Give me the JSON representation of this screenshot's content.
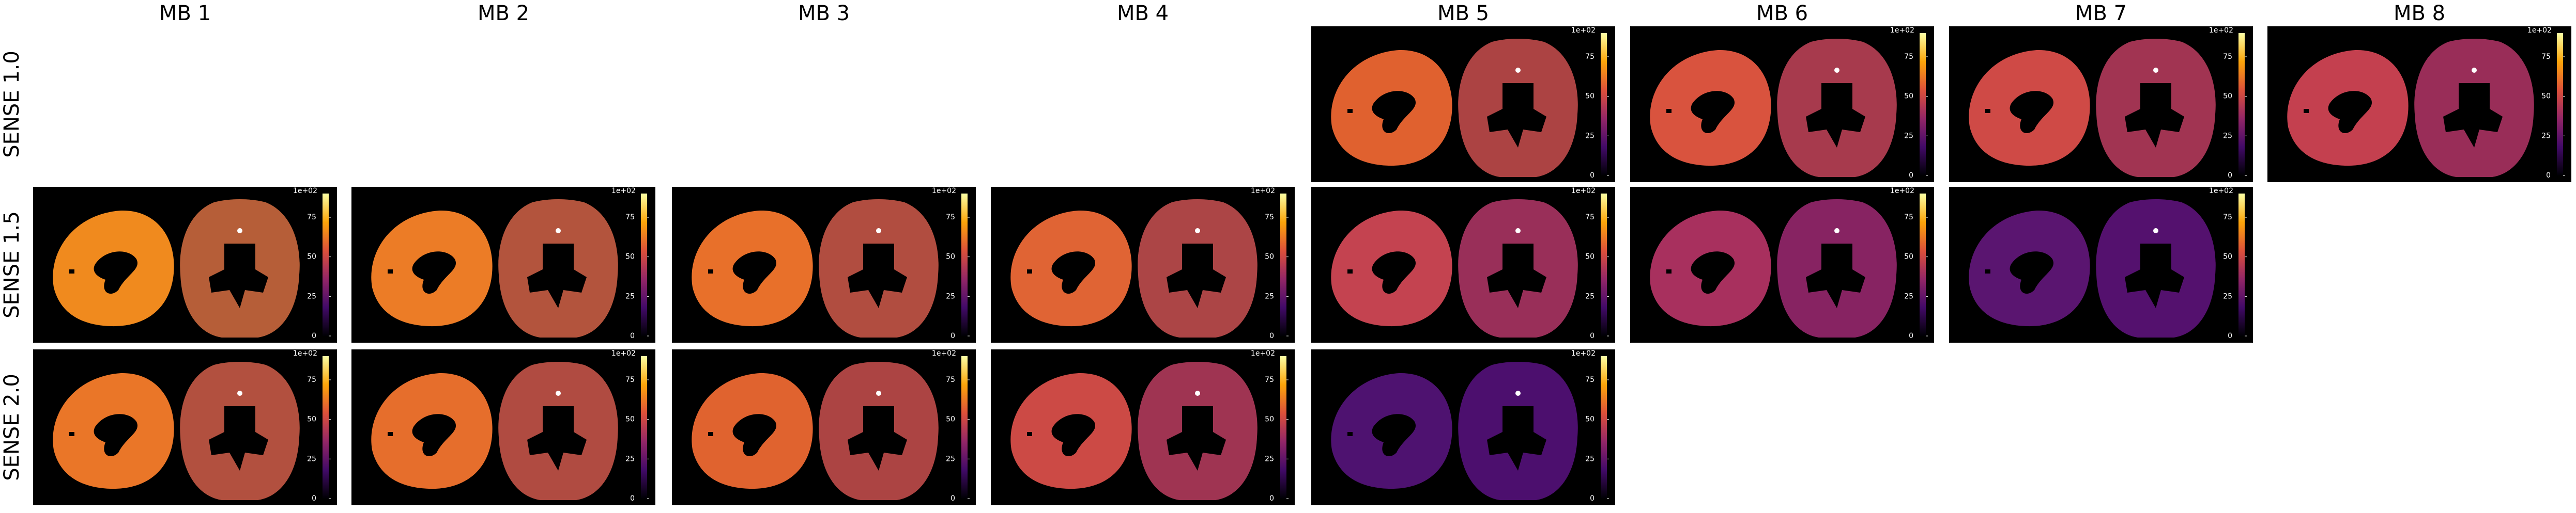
{
  "columns": [
    "MB 1",
    "MB 2",
    "MB 3",
    "MB 4",
    "MB 5",
    "MB 6",
    "MB 7",
    "MB 8"
  ],
  "colorbar": {
    "offset_label": "1e+02",
    "ticks": [
      0,
      25,
      50,
      75
    ],
    "lim": [
      0,
      90
    ]
  },
  "rows": [
    {
      "label": "SENSE 1.0",
      "panels": [
        null,
        null,
        null,
        null,
        {
          "color": "#e0612f"
        },
        {
          "color": "#d9533e"
        },
        {
          "color": "#cf4a46"
        },
        {
          "color": "#c4404f"
        }
      ]
    },
    {
      "label": "SENSE 1.5",
      "panels": [
        {
          "color": "#f08a1e"
        },
        {
          "color": "#ec7c26"
        },
        {
          "color": "#e8702a"
        },
        {
          "color": "#e06434"
        },
        {
          "color": "#c44350"
        },
        {
          "color": "#a8305e"
        },
        {
          "color": "#5a1570"
        },
        null
      ]
    },
    {
      "label": "SENSE 2.0",
      "panels": [
        {
          "color": "#ea7628"
        },
        {
          "color": "#e66e2c"
        },
        {
          "color": "#e0632f"
        },
        {
          "color": "#cc4a45"
        },
        {
          "color": "#4e1270"
        },
        null,
        null,
        null
      ]
    }
  ]
}
